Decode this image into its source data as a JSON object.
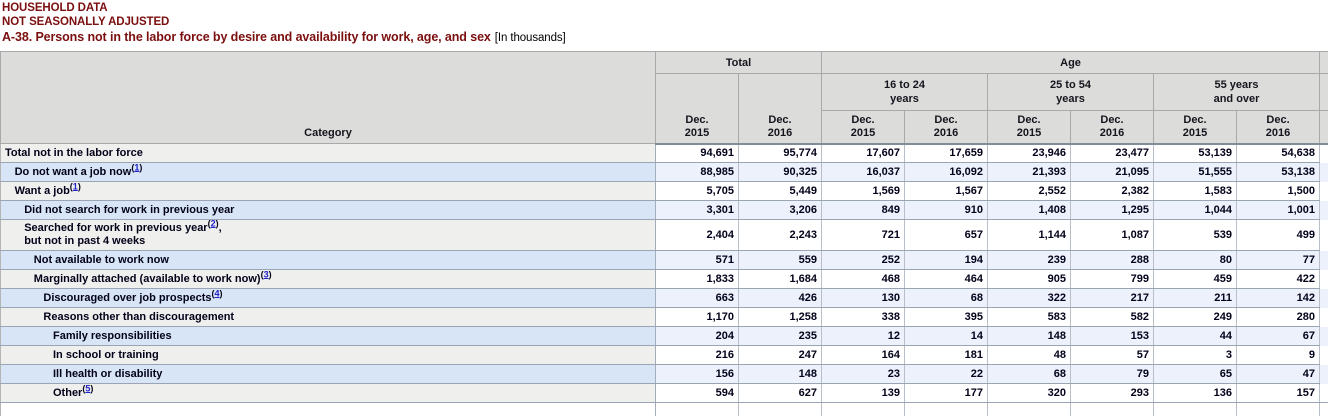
{
  "page": {
    "titles": {
      "line1": "HOUSEHOLD DATA",
      "line2": "NOT SEASONALLY ADJUSTED",
      "line3": "A-38. Persons not in the labor force by desire and availability for work, age, and sex",
      "line3_suffix": "[In thousands]"
    }
  },
  "colors": {
    "title_maroon": "#7b0e0e",
    "header_bg": "#dcdcda",
    "row_light_category_bg": "#efefed",
    "row_light_value_bg": "#ffffff",
    "row_blue_category_bg": "#d8e5f7",
    "row_blue_value_bg": "#ecf1fb",
    "footnote_link_blue": "#2222cc",
    "row_border": "#9aa5b3"
  },
  "table": {
    "header": {
      "category_label": "Category",
      "total_group": "Total",
      "age_group": "Age",
      "age_subgroups": [
        "16 to 24\nyears",
        "25 to 54\nyears",
        "55 years\nand over"
      ],
      "total_dates": [
        "Dec.\n2015",
        "Dec.\n2016"
      ],
      "age_dates": [
        "Dec.\n2015",
        "Dec.\n2016",
        "Dec.\n2015",
        "Dec.\n2016",
        "Dec.\n2015",
        "Dec.\n2016"
      ]
    },
    "rows": [
      {
        "indent": 0,
        "lines": [
          [
            {
              "t": "Total not in the labor force"
            }
          ]
        ],
        "values": [
          "94,691",
          "95,774",
          "17,607",
          "17,659",
          "23,946",
          "23,477",
          "53,139",
          "54,638"
        ]
      },
      {
        "indent": 1,
        "lines": [
          [
            {
              "t": "Do not want a job now"
            },
            {
              "f": "1"
            }
          ]
        ],
        "values": [
          "88,985",
          "90,325",
          "16,037",
          "16,092",
          "21,393",
          "21,095",
          "51,555",
          "53,138"
        ]
      },
      {
        "indent": 1,
        "lines": [
          [
            {
              "t": "Want a job"
            },
            {
              "f": "1"
            }
          ]
        ],
        "values": [
          "5,705",
          "5,449",
          "1,569",
          "1,567",
          "2,552",
          "2,382",
          "1,583",
          "1,500"
        ]
      },
      {
        "indent": 2,
        "lines": [
          [
            {
              "t": "Did not search for work in previous year"
            }
          ]
        ],
        "values": [
          "3,301",
          "3,206",
          "849",
          "910",
          "1,408",
          "1,295",
          "1,044",
          "1,001"
        ]
      },
      {
        "indent": 2,
        "lines": [
          [
            {
              "t": "Searched for work in previous year"
            },
            {
              "f": "2"
            },
            {
              "t": ","
            }
          ],
          [
            {
              "t": "but not in past 4 weeks"
            }
          ]
        ],
        "values": [
          "2,404",
          "2,243",
          "721",
          "657",
          "1,144",
          "1,087",
          "539",
          "499"
        ]
      },
      {
        "indent": 3,
        "lines": [
          [
            {
              "t": "Not available to work now"
            }
          ]
        ],
        "values": [
          "571",
          "559",
          "252",
          "194",
          "239",
          "288",
          "80",
          "77"
        ]
      },
      {
        "indent": 3,
        "lines": [
          [
            {
              "t": "Marginally attached (available to work now)"
            },
            {
              "f": "3"
            }
          ]
        ],
        "values": [
          "1,833",
          "1,684",
          "468",
          "464",
          "905",
          "799",
          "459",
          "422"
        ]
      },
      {
        "indent": 4,
        "lines": [
          [
            {
              "t": "Discouraged over job prospects"
            },
            {
              "f": "4"
            }
          ]
        ],
        "values": [
          "663",
          "426",
          "130",
          "68",
          "322",
          "217",
          "211",
          "142"
        ]
      },
      {
        "indent": 4,
        "lines": [
          [
            {
              "t": "Reasons other than discouragement"
            }
          ]
        ],
        "values": [
          "1,170",
          "1,258",
          "338",
          "395",
          "583",
          "582",
          "249",
          "280"
        ]
      },
      {
        "indent": 5,
        "lines": [
          [
            {
              "t": "Family responsibilities"
            }
          ]
        ],
        "values": [
          "204",
          "235",
          "12",
          "14",
          "148",
          "153",
          "44",
          "67"
        ]
      },
      {
        "indent": 5,
        "lines": [
          [
            {
              "t": "In school or training"
            }
          ]
        ],
        "values": [
          "216",
          "247",
          "164",
          "181",
          "48",
          "57",
          "3",
          "9"
        ]
      },
      {
        "indent": 5,
        "lines": [
          [
            {
              "t": "Ill health or disability"
            }
          ]
        ],
        "values": [
          "156",
          "148",
          "23",
          "22",
          "68",
          "79",
          "65",
          "47"
        ]
      },
      {
        "indent": 5,
        "lines": [
          [
            {
              "t": "Other"
            },
            {
              "f": "5"
            }
          ]
        ],
        "values": [
          "594",
          "627",
          "139",
          "177",
          "320",
          "293",
          "136",
          "157"
        ]
      }
    ]
  }
}
